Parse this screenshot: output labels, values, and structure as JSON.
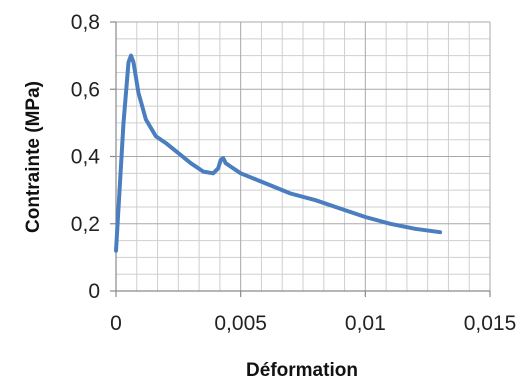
{
  "chart_data": {
    "type": "line",
    "title": "",
    "xlabel": "Déformation",
    "ylabel": "Contrainte (MPa)",
    "xlim": [
      0,
      0.015
    ],
    "ylim": [
      0,
      0.8
    ],
    "x_ticks": [
      "0",
      "0,005",
      "0,01",
      "0,015"
    ],
    "y_ticks": [
      "0",
      "0,2",
      "0,4",
      "0,6",
      "0,8"
    ],
    "grid": true,
    "legend": "none",
    "line_color": "#4a7ebf",
    "series": [
      {
        "x": [
          0,
          0.0003,
          0.0005,
          0.0006,
          0.0007,
          0.0009,
          0.0012,
          0.0016,
          0.002,
          0.0025,
          0.003,
          0.0035,
          0.0039,
          0.0041,
          0.0042,
          0.0043,
          0.0044,
          0.0046,
          0.005,
          0.006,
          0.007,
          0.008,
          0.009,
          0.01,
          0.011,
          0.012,
          0.013
        ],
        "y": [
          0.12,
          0.5,
          0.68,
          0.7,
          0.68,
          0.59,
          0.51,
          0.46,
          0.44,
          0.41,
          0.38,
          0.355,
          0.35,
          0.365,
          0.39,
          0.395,
          0.38,
          0.37,
          0.35,
          0.32,
          0.29,
          0.27,
          0.245,
          0.22,
          0.2,
          0.185,
          0.175
        ]
      }
    ]
  }
}
